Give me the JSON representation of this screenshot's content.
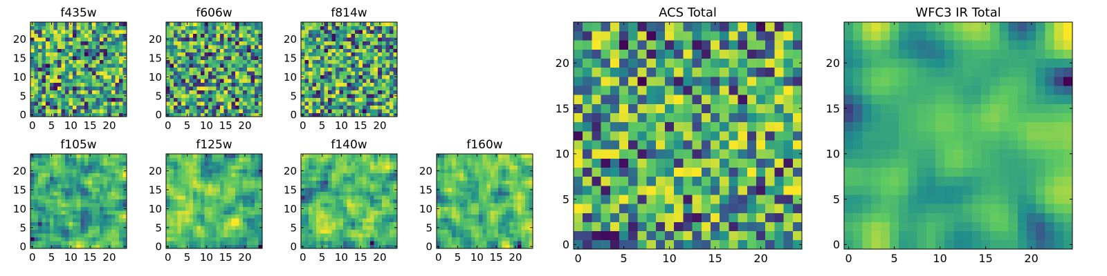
{
  "figure": {
    "background": "#ffffff",
    "colormap": "viridis",
    "colormap_stops": [
      "#440154",
      "#3b528b",
      "#21918c",
      "#5ec962",
      "#fde725"
    ]
  },
  "chart_data": [
    {
      "type": "heatmap",
      "title": "f435w",
      "grid_size": [
        25,
        25
      ],
      "xlim": [
        -0.5,
        24.5
      ],
      "ylim": [
        -0.5,
        24.5
      ],
      "x_ticks": [
        0,
        5,
        10,
        15,
        20
      ],
      "y_ticks": [
        0,
        5,
        10,
        15,
        20
      ],
      "texture": "noise",
      "smoothing": 0,
      "seed": 11,
      "grid": false
    },
    {
      "type": "heatmap",
      "title": "f606w",
      "grid_size": [
        25,
        25
      ],
      "xlim": [
        -0.5,
        24.5
      ],
      "ylim": [
        -0.5,
        24.5
      ],
      "x_ticks": [
        0,
        5,
        10,
        15,
        20
      ],
      "y_ticks": [
        0,
        5,
        10,
        15,
        20
      ],
      "texture": "noise",
      "smoothing": 0,
      "seed": 23,
      "grid": false
    },
    {
      "type": "heatmap",
      "title": "f814w",
      "grid_size": [
        25,
        25
      ],
      "xlim": [
        -0.5,
        24.5
      ],
      "ylim": [
        -0.5,
        24.5
      ],
      "x_ticks": [
        0,
        5,
        10,
        15,
        20
      ],
      "y_ticks": [
        0,
        5,
        10,
        15,
        20
      ],
      "texture": "noise",
      "smoothing": 0,
      "seed": 37,
      "grid": false
    },
    {
      "type": "heatmap",
      "title": "f105w",
      "grid_size": [
        25,
        25
      ],
      "xlim": [
        -0.5,
        24.5
      ],
      "ylim": [
        -0.5,
        24.5
      ],
      "x_ticks": [
        0,
        5,
        10,
        15,
        20
      ],
      "y_ticks": [
        0,
        5,
        10,
        15,
        20
      ],
      "texture": "smooth",
      "smoothing": 1,
      "seed": 41,
      "grid": false
    },
    {
      "type": "heatmap",
      "title": "f125w",
      "grid_size": [
        25,
        25
      ],
      "xlim": [
        -0.5,
        24.5
      ],
      "ylim": [
        -0.5,
        24.5
      ],
      "x_ticks": [
        0,
        5,
        10,
        15,
        20
      ],
      "y_ticks": [
        0,
        5,
        10,
        15,
        20
      ],
      "texture": "smooth",
      "smoothing": 1,
      "seed": 53,
      "grid": false
    },
    {
      "type": "heatmap",
      "title": "f140w",
      "grid_size": [
        25,
        25
      ],
      "xlim": [
        -0.5,
        24.5
      ],
      "ylim": [
        -0.5,
        24.5
      ],
      "x_ticks": [
        0,
        5,
        10,
        15,
        20
      ],
      "y_ticks": [
        0,
        5,
        10,
        15,
        20
      ],
      "texture": "smooth",
      "smoothing": 1,
      "seed": 67,
      "grid": false
    },
    {
      "type": "heatmap",
      "title": "f160w",
      "grid_size": [
        25,
        25
      ],
      "xlim": [
        -0.5,
        24.5
      ],
      "ylim": [
        -0.5,
        24.5
      ],
      "x_ticks": [
        0,
        5,
        10,
        15,
        20
      ],
      "y_ticks": [
        0,
        5,
        10,
        15,
        20
      ],
      "texture": "smooth",
      "smoothing": 1,
      "seed": 79,
      "grid": false
    },
    {
      "type": "heatmap",
      "title": "ACS Total",
      "grid_size": [
        25,
        25
      ],
      "xlim": [
        -0.5,
        24.5
      ],
      "ylim": [
        -0.5,
        24.5
      ],
      "x_ticks": [
        0,
        5,
        10,
        15,
        20
      ],
      "y_ticks": [
        0,
        5,
        10,
        15,
        20
      ],
      "texture": "noise",
      "smoothing": 0,
      "seed": 97,
      "grid": false
    },
    {
      "type": "heatmap",
      "title": "WFC3 IR Total",
      "grid_size": [
        25,
        25
      ],
      "xlim": [
        -0.5,
        24.5
      ],
      "ylim": [
        -0.5,
        24.5
      ],
      "x_ticks": [
        0,
        5,
        10,
        15,
        20
      ],
      "y_ticks": [
        0,
        5,
        10,
        15,
        20
      ],
      "texture": "smooth",
      "smoothing": 3,
      "seed": 113,
      "grid": false
    }
  ]
}
